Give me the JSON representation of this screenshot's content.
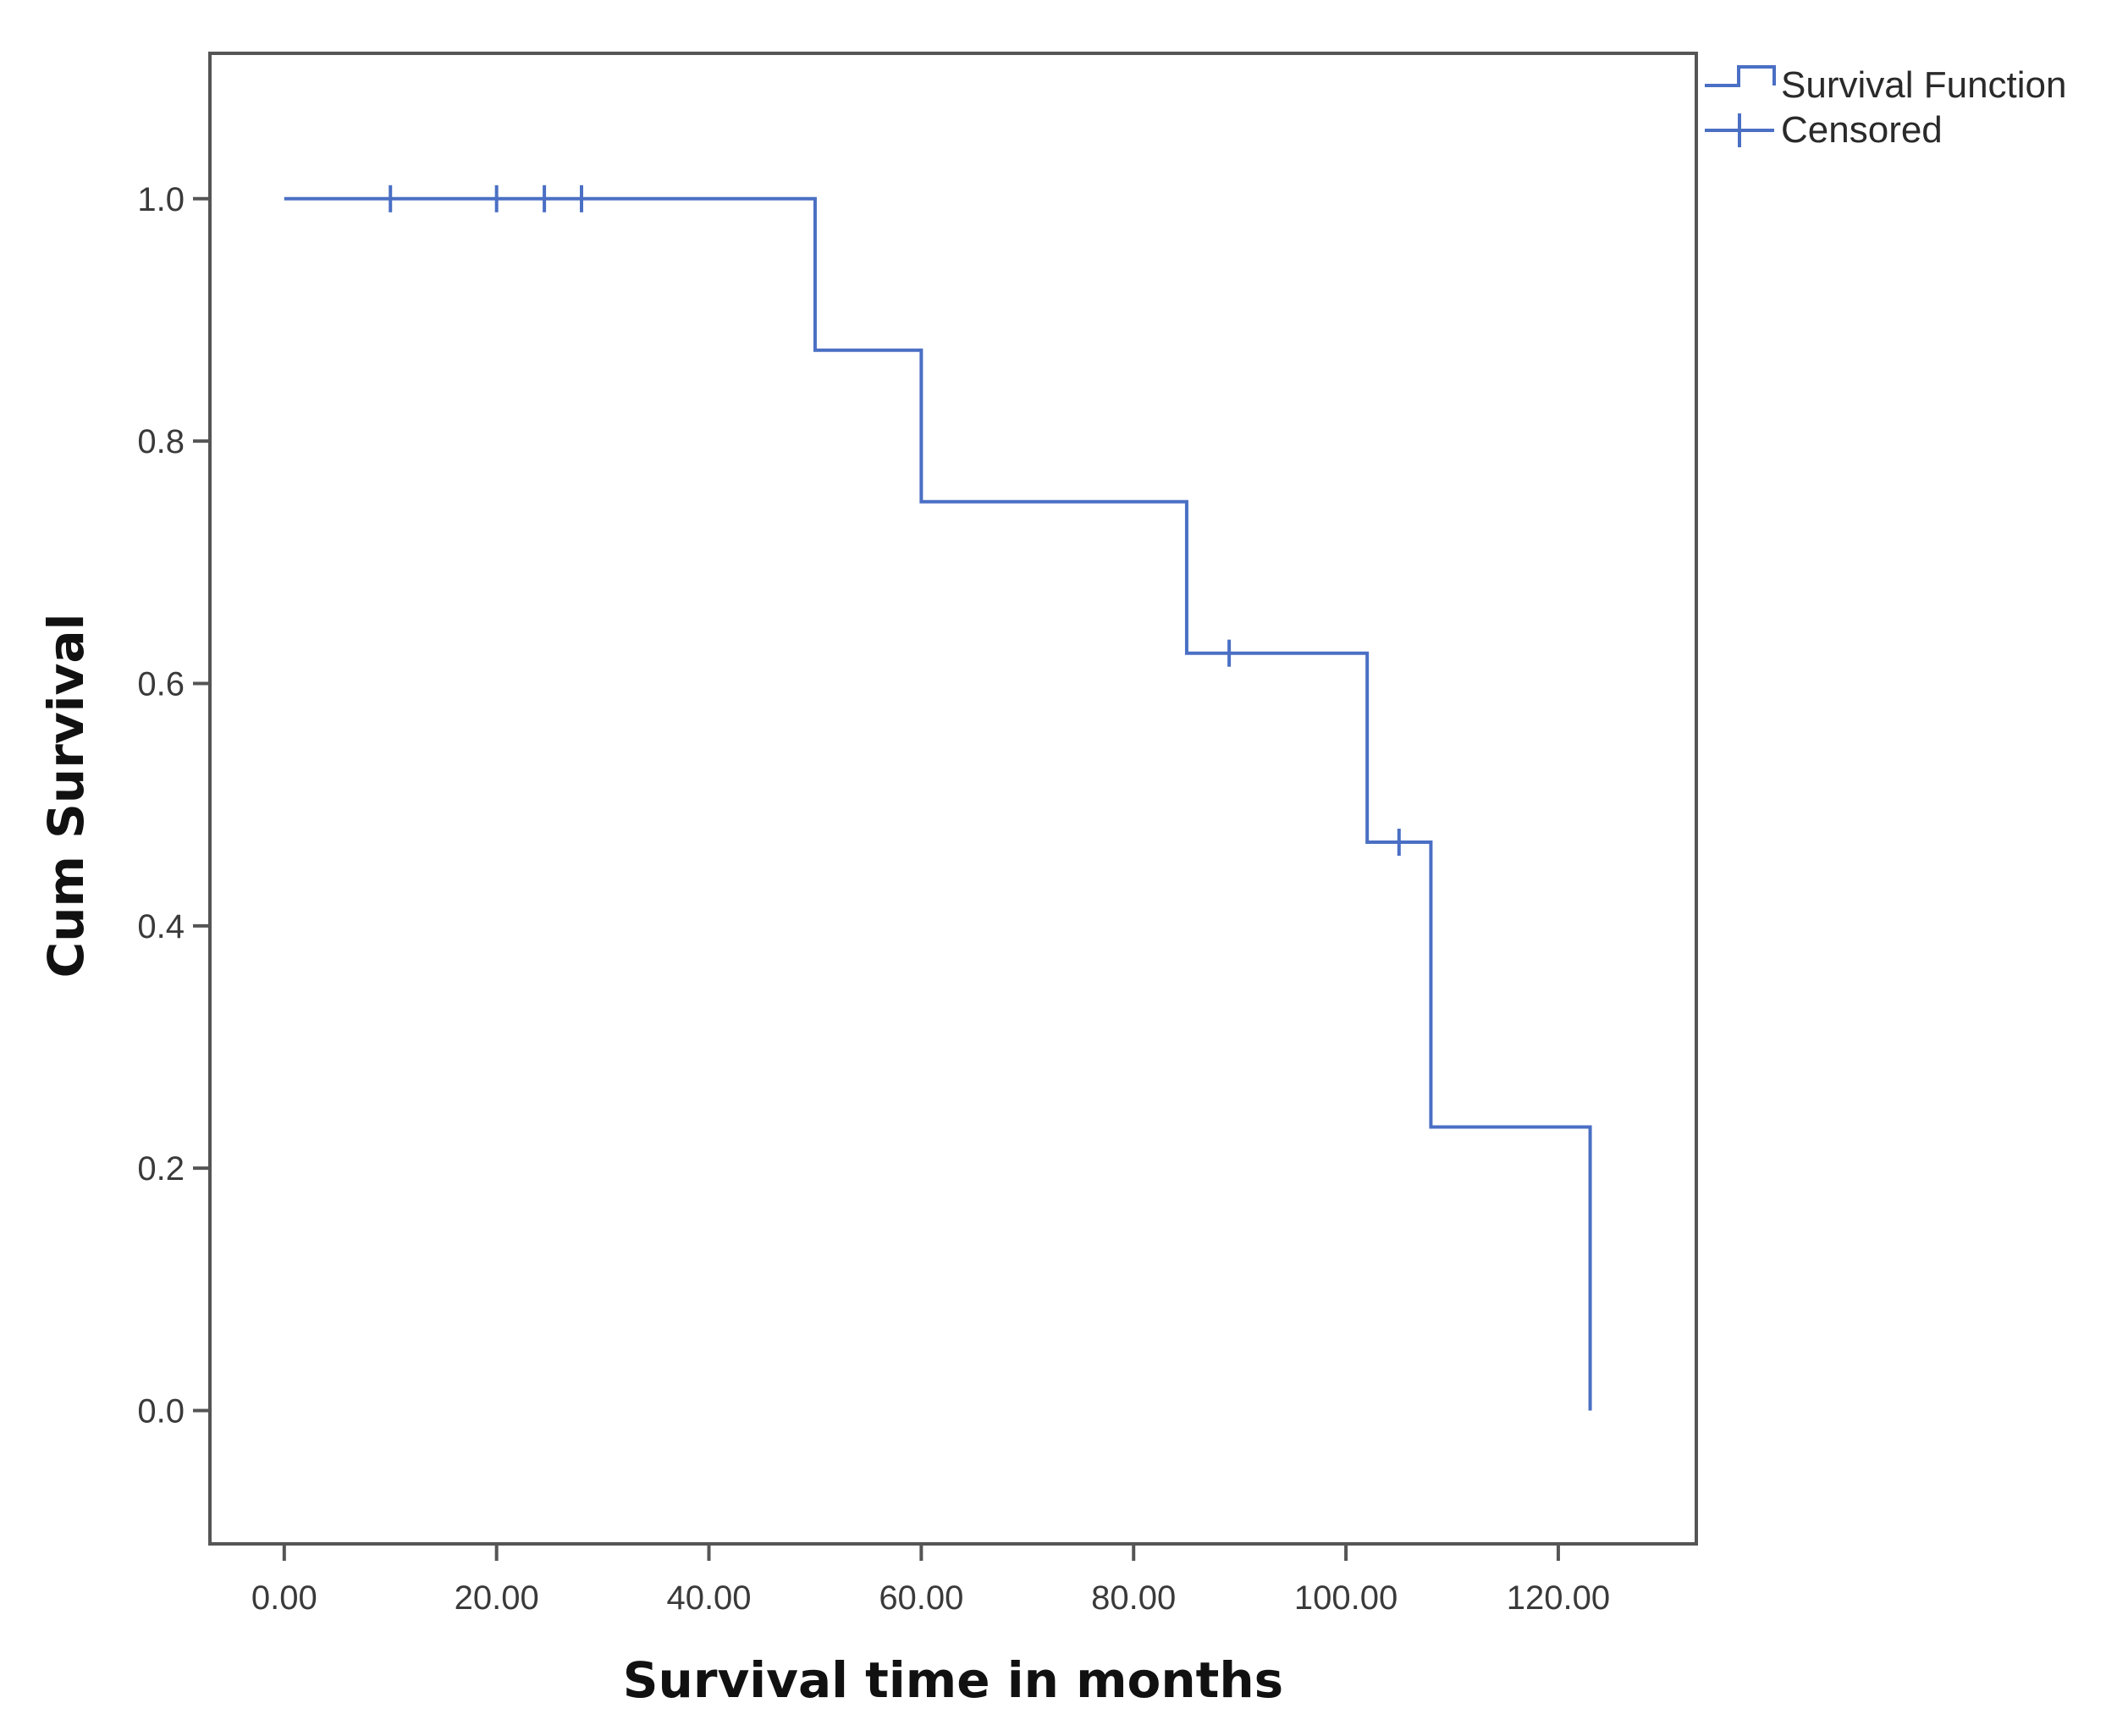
{
  "colors": {
    "series": "#4a6fc4",
    "frame": "#555555",
    "axis_text": "#3a3a3a"
  },
  "chart_data": {
    "type": "line",
    "subtype": "kaplan-meier-step",
    "xlabel": "Survival time in months",
    "ylabel": "Cum Survival",
    "xlim": [
      -7,
      133
    ],
    "ylim": [
      -0.11,
      1.12
    ],
    "x_ticks": [
      0,
      20,
      40,
      60,
      80,
      100,
      120
    ],
    "x_tick_labels": [
      "0.00",
      "20.00",
      "40.00",
      "60.00",
      "80.00",
      "100.00",
      "120.00"
    ],
    "y_ticks": [
      0.0,
      0.2,
      0.4,
      0.6,
      0.8,
      1.0
    ],
    "y_tick_labels": [
      "0.0",
      "0.2",
      "0.4",
      "0.6",
      "0.8",
      "1.0"
    ],
    "grid": false,
    "legend_position": "outside-top-right",
    "legend": [
      "Survival Function",
      "Censored"
    ],
    "series": [
      {
        "name": "Survival Function",
        "color": "#4a6fc4",
        "steps": [
          {
            "x": 0,
            "y": 1.0
          },
          {
            "x": 50,
            "y": 0.875
          },
          {
            "x": 60,
            "y": 0.75
          },
          {
            "x": 85,
            "y": 0.625
          },
          {
            "x": 102,
            "y": 0.469
          },
          {
            "x": 108,
            "y": 0.234
          },
          {
            "x": 123,
            "y": 0.0
          }
        ]
      },
      {
        "name": "Censored",
        "color": "#4a6fc4",
        "points": [
          {
            "x": 10,
            "y": 1.0
          },
          {
            "x": 20,
            "y": 1.0
          },
          {
            "x": 24.5,
            "y": 1.0
          },
          {
            "x": 28,
            "y": 1.0
          },
          {
            "x": 89,
            "y": 0.625
          },
          {
            "x": 105,
            "y": 0.469
          }
        ]
      }
    ]
  }
}
